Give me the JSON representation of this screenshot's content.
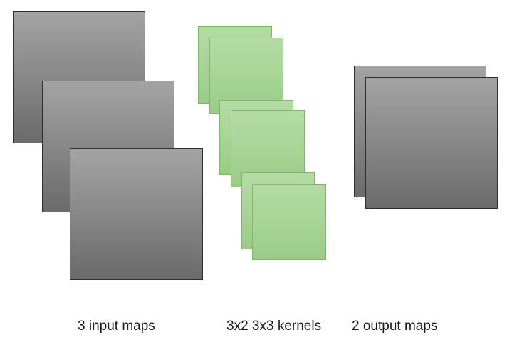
{
  "captions": {
    "input": "3 input maps",
    "kernels": "3x2 3x3 kernels",
    "output": "2 output maps"
  }
}
